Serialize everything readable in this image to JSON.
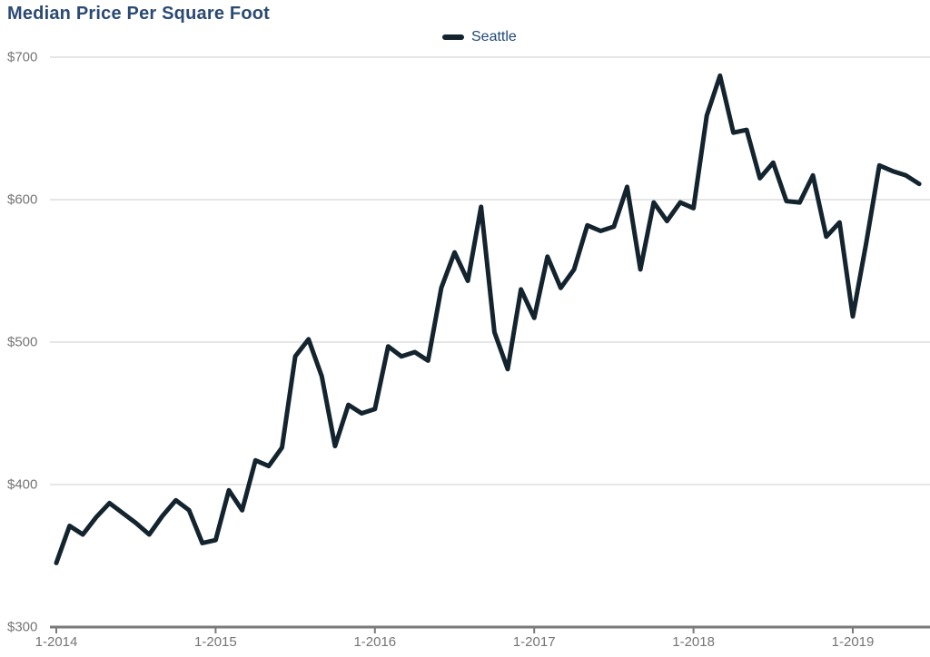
{
  "title": "Median Price Per Square Foot",
  "legend": {
    "label": "Seattle",
    "position": "top-center"
  },
  "axes": {
    "y_tick_labels": [
      "$300",
      "$400",
      "$500",
      "$600",
      "$700"
    ],
    "x_tick_labels": [
      "1-2014",
      "1-2015",
      "1-2016",
      "1-2017",
      "1-2018",
      "1-2019"
    ]
  },
  "colors": {
    "line": "#13242f",
    "title_text": "#2b4a72",
    "legend_text": "#1f4975",
    "axis_label_text": "#757575",
    "gridline": "#cdcdcd",
    "axis_line": "#7a7a7a"
  },
  "chart_data": {
    "type": "line",
    "title": "Median Price Per Square Foot",
    "xlabel": "",
    "ylabel": "",
    "ylim": [
      300,
      700
    ],
    "y_gridlines": [
      300,
      400,
      500,
      600,
      700
    ],
    "grid": "horizontal",
    "legend_position": "top-center",
    "x_major_ticks": [
      "1-2014",
      "1-2015",
      "1-2016",
      "1-2017",
      "1-2018",
      "1-2019"
    ],
    "series": [
      {
        "name": "Seattle",
        "color": "#13242f",
        "x": [
          "1-2014",
          "2-2014",
          "3-2014",
          "4-2014",
          "5-2014",
          "6-2014",
          "7-2014",
          "8-2014",
          "9-2014",
          "10-2014",
          "11-2014",
          "12-2014",
          "1-2015",
          "2-2015",
          "3-2015",
          "4-2015",
          "5-2015",
          "6-2015",
          "7-2015",
          "8-2015",
          "9-2015",
          "10-2015",
          "11-2015",
          "12-2015",
          "1-2016",
          "2-2016",
          "3-2016",
          "4-2016",
          "5-2016",
          "6-2016",
          "7-2016",
          "8-2016",
          "9-2016",
          "10-2016",
          "11-2016",
          "12-2016",
          "1-2017",
          "2-2017",
          "3-2017",
          "4-2017",
          "5-2017",
          "6-2017",
          "7-2017",
          "8-2017",
          "9-2017",
          "10-2017",
          "11-2017",
          "12-2017",
          "1-2018",
          "2-2018",
          "3-2018",
          "4-2018",
          "5-2018",
          "6-2018",
          "7-2018",
          "8-2018",
          "9-2018",
          "10-2018",
          "11-2018",
          "12-2018",
          "1-2019",
          "2-2019",
          "3-2019",
          "4-2019",
          "5-2019",
          "6-2019"
        ],
        "values": [
          345,
          371,
          365,
          377,
          387,
          380,
          373,
          365,
          378,
          389,
          382,
          359,
          361,
          396,
          382,
          417,
          413,
          426,
          490,
          502,
          476,
          427,
          456,
          450,
          453,
          497,
          490,
          493,
          487,
          538,
          563,
          543,
          595,
          507,
          481,
          537,
          517,
          560,
          538,
          551,
          582,
          578,
          581,
          609,
          551,
          598,
          585,
          598,
          594,
          659,
          687,
          647,
          649,
          615,
          626,
          599,
          598,
          617,
          574,
          584,
          518,
          569,
          624,
          620,
          617,
          611
        ]
      }
    ]
  }
}
